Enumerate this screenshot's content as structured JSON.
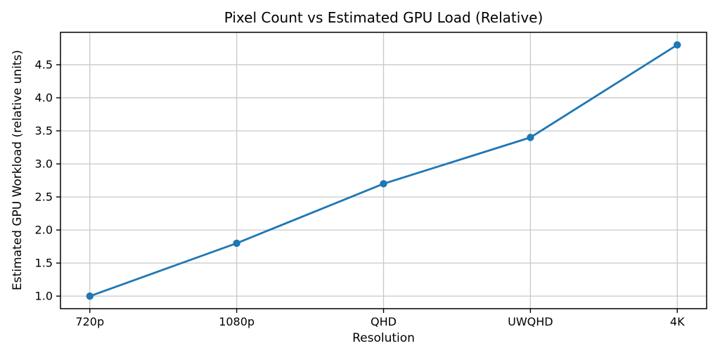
{
  "figure": {
    "background": "#ffffff"
  },
  "chart_data": {
    "type": "line",
    "title": "Pixel Count vs Estimated GPU Load (Relative)",
    "xlabel": "Resolution",
    "ylabel": "Estimated GPU Workload (relative units)",
    "categories": [
      "720p",
      "1080p",
      "QHD",
      "UWQHD",
      "4K"
    ],
    "values": [
      1.0,
      1.8,
      2.7,
      3.4,
      4.8
    ],
    "yticks": [
      1.0,
      1.5,
      2.0,
      2.5,
      3.0,
      3.5,
      4.0,
      4.5
    ],
    "ylim": [
      0.81,
      4.99
    ],
    "xlim": [
      -0.2,
      4.2
    ],
    "grid": true,
    "legend": "none",
    "line_color": "#1f77b4",
    "marker": "circle",
    "grid_color": "#c8c8c8",
    "spine_color": "#000000",
    "tick_color": "#000000"
  }
}
